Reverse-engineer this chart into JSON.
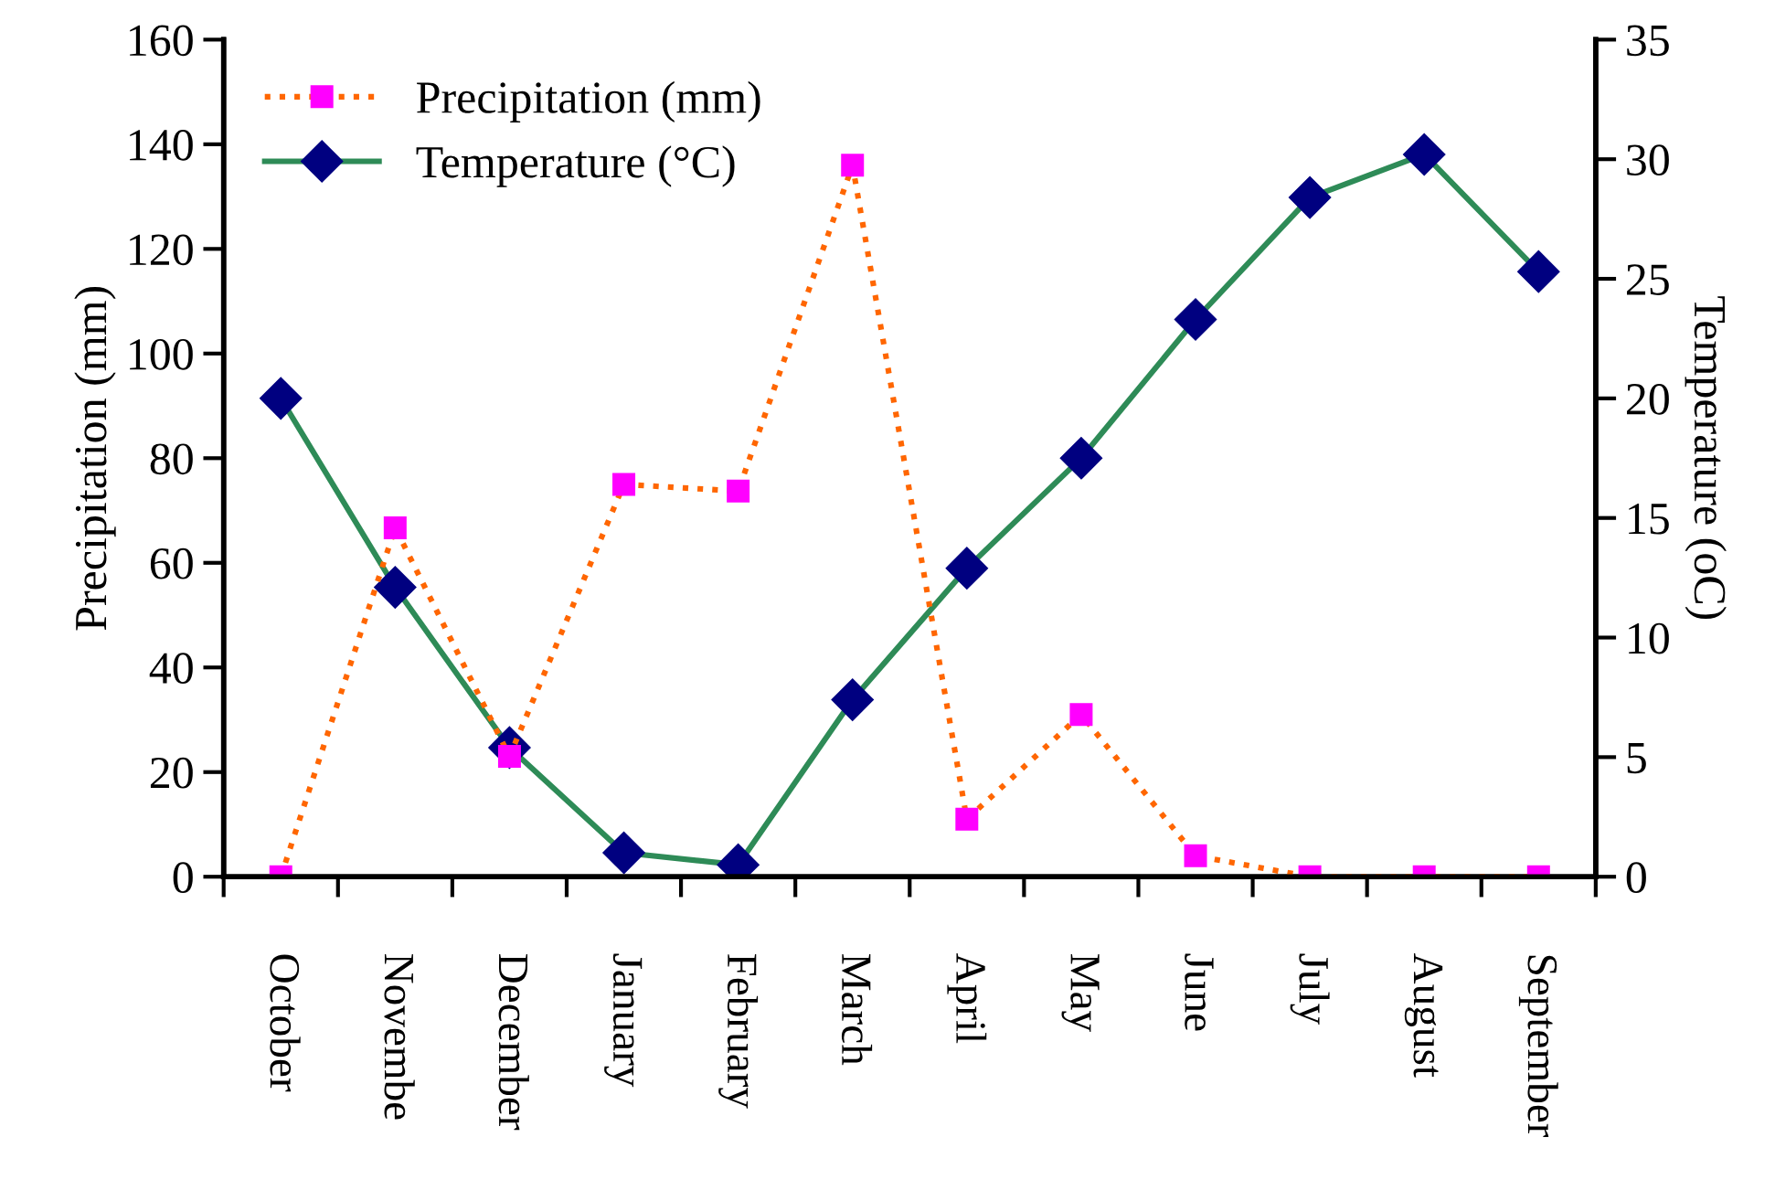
{
  "chart_data": {
    "type": "line",
    "categories": [
      "October",
      "Novembe",
      "December",
      "January",
      "February",
      "March",
      "April",
      "May",
      "June",
      "July",
      "August",
      "September"
    ],
    "ylabel": "Precipitation (mm)",
    "y2label": "Temperature (oC)",
    "ylim": [
      0,
      160
    ],
    "yticks": [
      0,
      20,
      40,
      60,
      80,
      100,
      120,
      140,
      160
    ],
    "y2lim": [
      0,
      35
    ],
    "y2ticks": [
      0,
      5,
      10,
      15,
      20,
      25,
      30,
      35
    ],
    "grid": false,
    "legend": "top left",
    "series": [
      {
        "name": "Precipitation (mm)",
        "color": "#ff6600",
        "marker": "square",
        "line_style": "dotted",
        "values": [
          0,
          66.7,
          23,
          75,
          73.7,
          136,
          11,
          31,
          4,
          0,
          0,
          0
        ]
      },
      {
        "name": "Temperature (°C)",
        "color": "#2e8b57",
        "marker": "diamond",
        "line_style": "solid",
        "axis": "y2",
        "values": [
          20,
          12.1,
          5.4,
          1.0,
          0.5,
          7.4,
          12.9,
          17.5,
          23.3,
          28.4,
          30.2,
          25.3
        ]
      }
    ]
  }
}
